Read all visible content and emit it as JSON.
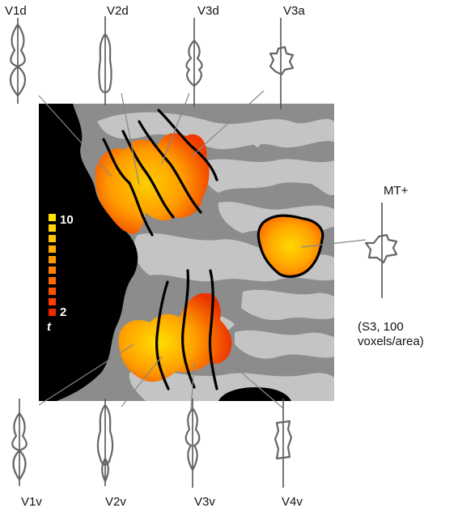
{
  "labels": {
    "top": [
      "V1d",
      "V2d",
      "V3d",
      "V3a"
    ],
    "bottom": [
      "V1v",
      "V2v",
      "V3v",
      "V4v"
    ],
    "right": "MT+"
  },
  "color_scale": {
    "max_label": "10",
    "min_label": "2",
    "stat_label": "t",
    "colors": [
      "#ffe600",
      "#ffd400",
      "#ffc000",
      "#ffac00",
      "#ff9800",
      "#ff8000",
      "#ff6a00",
      "#ff5200",
      "#ff3c00",
      "#f02800"
    ]
  },
  "note": {
    "line1": "(S3, 100",
    "line2": "voxels/area)"
  }
}
